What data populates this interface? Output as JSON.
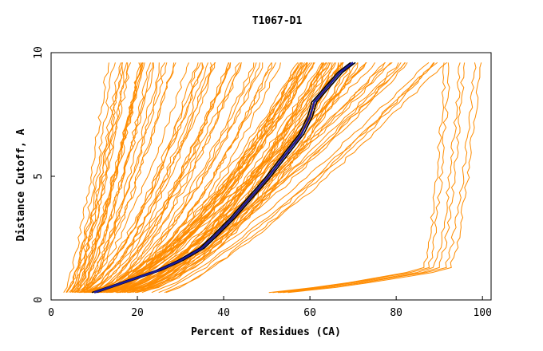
{
  "chart_data": {
    "type": "line",
    "title": "T1067-D1",
    "xlabel": "Percent of Residues (CA)",
    "ylabel": "Distance Cutoff, A",
    "xlim": [
      0,
      102
    ],
    "ylim": [
      0,
      10
    ],
    "xticks": [
      0,
      20,
      40,
      60,
      80,
      100
    ],
    "yticks": [
      0,
      5,
      10
    ],
    "x_tick_labels": [
      "0",
      "20",
      "40",
      "60",
      "80",
      "100"
    ],
    "y_tick_labels": [
      "0",
      "5",
      "10"
    ],
    "grid": false,
    "colors": {
      "models": "#ff8c00",
      "highlight_outline": "#000000",
      "highlight_fill": "#1a1a9e"
    },
    "highlight_series": [
      {
        "x": [
          10,
          15,
          20,
          25,
          30,
          35,
          38,
          42,
          46,
          50,
          54,
          58,
          60,
          61,
          63,
          65,
          67,
          70
        ],
        "y": [
          0.3,
          0.6,
          0.9,
          1.2,
          1.6,
          2.1,
          2.6,
          3.3,
          4.1,
          4.9,
          5.8,
          6.7,
          7.4,
          8.0,
          8.4,
          8.8,
          9.2,
          9.6
        ]
      }
    ],
    "model_groups": [
      {
        "count": 22,
        "start": [
          3,
          8
        ],
        "end": [
          12,
          30
        ],
        "curve": 0.75
      },
      {
        "count": 24,
        "start": [
          5,
          14
        ],
        "end": [
          30,
          55
        ],
        "curve": 0.65
      },
      {
        "count": 40,
        "start": [
          6,
          20
        ],
        "end": [
          55,
          72
        ],
        "curve": 0.6
      },
      {
        "count": 18,
        "start": [
          8,
          28
        ],
        "end": [
          70,
          92
        ],
        "curve": 0.8
      },
      {
        "count": 6,
        "start": [
          50,
          55
        ],
        "end": [
          90,
          100
        ],
        "type": "step",
        "knee": [
          86,
          92
        ]
      }
    ]
  }
}
